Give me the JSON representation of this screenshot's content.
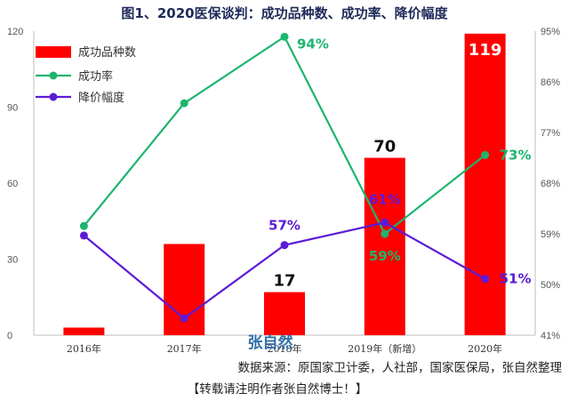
{
  "chart_data": {
    "type": "bar",
    "title": "图1、2020医保谈判：成功品种数、成功率、降价幅度",
    "categories": [
      "2016年",
      "2017年",
      "2018年",
      "2019年（新增）",
      "2020年"
    ],
    "y_left": {
      "ylim": [
        0,
        120
      ],
      "ticks": [
        "0",
        "30",
        "60",
        "90",
        "120"
      ]
    },
    "y_right": {
      "ylim": [
        41,
        95
      ],
      "ticks": [
        "41%",
        "50%",
        "59%",
        "68%",
        "77%",
        "86%",
        "95%"
      ]
    },
    "legend_position": "top-left",
    "series": [
      {
        "name": "成功品种数",
        "type": "bar",
        "axis": "left",
        "color": "#ff0000",
        "values": [
          3,
          36,
          17,
          70,
          119
        ],
        "labels": [
          "",
          "",
          "17",
          "70",
          "119"
        ]
      },
      {
        "name": "成功率",
        "type": "line",
        "axis": "right",
        "color": "#1db56f",
        "values": [
          60.4,
          82.2,
          94,
          59,
          73
        ],
        "labels": [
          "",
          "",
          "94%",
          "59%",
          "73%"
        ]
      },
      {
        "name": "降价幅度",
        "type": "line",
        "axis": "right",
        "color": "#5b1bd6",
        "values": [
          58.7,
          44,
          57,
          61,
          51
        ],
        "labels": [
          "",
          "",
          "57%",
          "61%",
          "51%"
        ]
      }
    ],
    "annotations": {
      "watermark": "张自然",
      "source": "数据来源：原国家卫计委，人社部，国家医保局，张自然整理",
      "note": "【转载请注明作者张自然博士！】"
    }
  }
}
